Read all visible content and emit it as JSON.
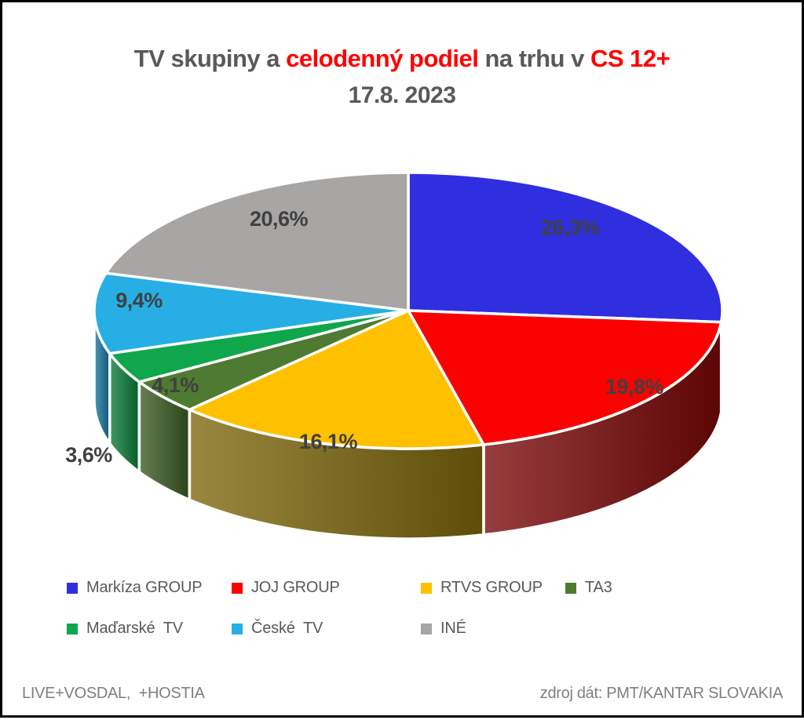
{
  "frame": {
    "border_color": "#000000",
    "background": "#FFFFFF"
  },
  "title": {
    "line1_parts": [
      {
        "text": "TV skupiny a ",
        "color": "#595959"
      },
      {
        "text": "celodenný podiel",
        "color": "#FF0000"
      },
      {
        "text": " na trhu v ",
        "color": "#595959"
      },
      {
        "text": "CS 12+",
        "color": "#FF0000"
      }
    ],
    "line2": "17.8. 2023",
    "line2_color": "#595959"
  },
  "chart_data": {
    "type": "pie",
    "style": "3d",
    "start_angle_deg": 0,
    "direction": "clockwise",
    "unit": "%",
    "slices": [
      {
        "name": "Markíza GROUP",
        "value": 26.3,
        "label": "26,3%",
        "color": "#2F2FE0",
        "side_color": "#1C1C86"
      },
      {
        "name": "JOJ GROUP",
        "value": 19.8,
        "label": "19,8%",
        "color": "#FA0202",
        "side_color": "#7A0606"
      },
      {
        "name": "RTVS GROUP",
        "value": 16.1,
        "label": "16,1%",
        "color": "#FFC000",
        "side_color": "#7D660A"
      },
      {
        "name": "TA3",
        "value": 4.1,
        "label": "4,1%",
        "color": "#4E7B31",
        "side_color": "#3A5B23"
      },
      {
        "name": "Maďarské  TV",
        "value": 3.6,
        "label": "3,6%",
        "color": "#0FA64C",
        "side_color": "#0B7C39"
      },
      {
        "name": "České  TV",
        "value": 9.4,
        "label": "9,4%",
        "color": "#27AEE4",
        "side_color": "#1877A0"
      },
      {
        "name": "INÉ",
        "value": 20.6,
        "label": "20,6%",
        "color": "#A8A5A5",
        "side_color": "#767171"
      }
    ],
    "label_color": "#404040",
    "legend_position": "bottom",
    "legend_text_color": "#595959"
  },
  "footer": {
    "left": "LIVE+VOSDAL,  +HOSTIA",
    "right": "zdroj dát: PMT/KANTAR SLOVAKIA",
    "color": "#7F7F7F"
  }
}
